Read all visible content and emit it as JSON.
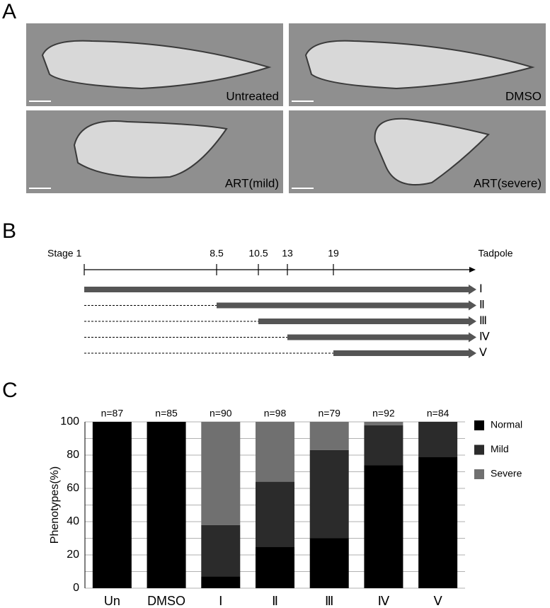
{
  "panel_labels": [
    "A",
    "B",
    "C"
  ],
  "panel_a": {
    "images": [
      {
        "label": "Untreated"
      },
      {
        "label": "DMSO"
      },
      {
        "label": "ART(mild)"
      },
      {
        "label": "ART(severe)"
      }
    ]
  },
  "panel_b": {
    "stages": [
      "Stage 1",
      "8.5",
      "10.5",
      "13",
      "19"
    ],
    "end_label": "Tadpole",
    "treatments": [
      "Ⅰ",
      "Ⅱ",
      "Ⅲ",
      "Ⅳ",
      "Ⅴ"
    ]
  },
  "chart_data": {
    "type": "stacked-bar",
    "y_label": "Phenotypes(%)",
    "categories": [
      "Un",
      "DMSO",
      "Ⅰ",
      "Ⅱ",
      "Ⅲ",
      "Ⅳ",
      "Ⅴ"
    ],
    "annotations": [
      "n=87",
      "n=85",
      "n=90",
      "n=98",
      "n=79",
      "n=92",
      "n=84"
    ],
    "series": [
      {
        "name": "Normal",
        "color": "#000000",
        "values": [
          100,
          100,
          7,
          25,
          30,
          74,
          79
        ]
      },
      {
        "name": "Mild",
        "color": "#2b2b2b",
        "values": [
          0,
          0,
          31,
          39,
          53,
          24,
          21
        ]
      },
      {
        "name": "Severe",
        "color": "#707070",
        "values": [
          0,
          0,
          62,
          36,
          17,
          2,
          0
        ]
      }
    ],
    "ylim": [
      0,
      100
    ],
    "yticks": [
      0,
      20,
      40,
      60,
      80,
      100
    ],
    "minor_yticks": [
      10,
      30,
      50,
      70,
      90
    ],
    "grid": true,
    "legend": "right"
  }
}
